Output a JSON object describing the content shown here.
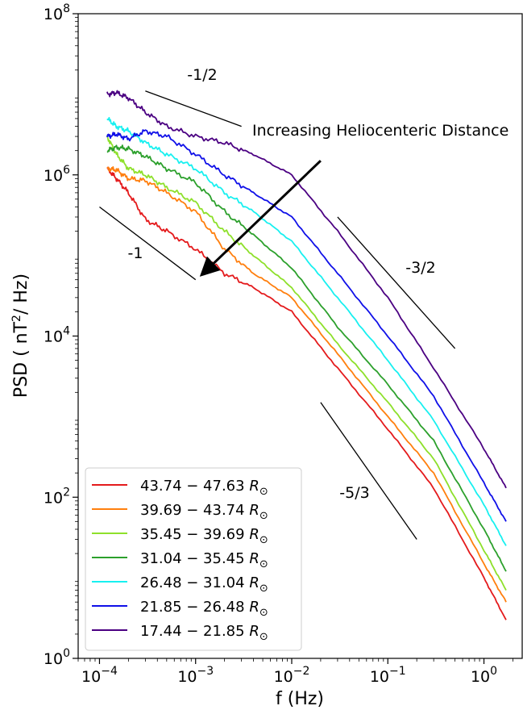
{
  "chart_data": {
    "type": "line",
    "xscale": "log",
    "yscale": "log",
    "xlim": [
      6e-05,
      2.5
    ],
    "ylim": [
      1,
      100000000
    ],
    "xlabel": "f (Hz)",
    "ylabel": "PSD ( nT²/ Hz)",
    "x_ticks": [
      {
        "value": 0.0001,
        "label": "10",
        "exp": "−4"
      },
      {
        "value": 0.001,
        "label": "10",
        "exp": "−3"
      },
      {
        "value": 0.01,
        "label": "10",
        "exp": "−2"
      },
      {
        "value": 0.1,
        "label": "10",
        "exp": "−1"
      },
      {
        "value": 1,
        "label": "10",
        "exp": "0"
      }
    ],
    "y_ticks": [
      {
        "value": 1,
        "label": "10",
        "exp": "0"
      },
      {
        "value": 100,
        "label": "10",
        "exp": "2"
      },
      {
        "value": 10000,
        "label": "10",
        "exp": "4"
      },
      {
        "value": 1000000,
        "label": "10",
        "exp": "6"
      },
      {
        "value": 100000000,
        "label": "10",
        "exp": "8"
      }
    ],
    "legend_placement": "lower-left",
    "series": [
      {
        "name": "43.74 − 47.63 R",
        "subscript": "⊙",
        "color": "#e41a1c",
        "x": [
          0.00012,
          0.00015,
          0.0002,
          0.0003,
          0.0005,
          0.001,
          0.002,
          0.004,
          0.01,
          0.03,
          0.1,
          0.3,
          1.0,
          1.7
        ],
        "y": [
          1200000,
          900000,
          600000,
          280000,
          200000,
          120000,
          60000,
          40000,
          20000,
          4000,
          700,
          130,
          10,
          3.0
        ]
      },
      {
        "name": "39.69 − 43.74 R",
        "subscript": "⊙",
        "color": "#ff7f0e",
        "x": [
          0.00012,
          0.00015,
          0.0002,
          0.0003,
          0.0005,
          0.001,
          0.002,
          0.004,
          0.01,
          0.03,
          0.1,
          0.3,
          1.0,
          1.7
        ],
        "y": [
          1200000,
          1150000,
          900000,
          850000,
          600000,
          350000,
          120000,
          60000,
          30000,
          6000,
          1000,
          200,
          15,
          5.0
        ]
      },
      {
        "name": "35.45 − 39.69 R",
        "subscript": "⊙",
        "color": "#8ee02b",
        "x": [
          0.00012,
          0.00015,
          0.0002,
          0.0003,
          0.0005,
          0.001,
          0.002,
          0.004,
          0.01,
          0.03,
          0.1,
          0.3,
          1.0,
          1.7
        ],
        "y": [
          3000000,
          1800000,
          1200000,
          1000000,
          700000,
          450000,
          200000,
          100000,
          40000,
          8000,
          1500,
          300,
          22,
          7.0
        ]
      },
      {
        "name": "31.04 − 35.45 R",
        "subscript": "⊙",
        "color": "#2ca02c",
        "x": [
          0.00012,
          0.00015,
          0.0002,
          0.0003,
          0.0005,
          0.001,
          0.002,
          0.004,
          0.01,
          0.03,
          0.1,
          0.3,
          1.0,
          1.7
        ],
        "y": [
          2000000,
          2200000,
          2100000,
          1700000,
          1200000,
          800000,
          350000,
          180000,
          70000,
          13000,
          2500,
          500,
          40,
          12.0
        ]
      },
      {
        "name": "26.48 − 31.04 R",
        "subscript": "⊙",
        "color": "#18f0f0",
        "x": [
          0.00012,
          0.00015,
          0.0002,
          0.0003,
          0.0005,
          0.001,
          0.002,
          0.004,
          0.01,
          0.03,
          0.1,
          0.3,
          1.0,
          1.7
        ],
        "y": [
          5000000,
          4000000,
          3500000,
          2500000,
          1800000,
          1200000,
          600000,
          350000,
          150000,
          30000,
          5000,
          900,
          80,
          25
        ]
      },
      {
        "name": "21.85 − 26.48 R",
        "subscript": "⊙",
        "color": "#1010e8",
        "x": [
          0.00012,
          0.00015,
          0.0002,
          0.0003,
          0.0005,
          0.001,
          0.002,
          0.004,
          0.01,
          0.03,
          0.1,
          0.3,
          1.0,
          1.7
        ],
        "y": [
          3000000,
          3200000,
          2800000,
          3500000,
          3000000,
          1800000,
          1000000,
          600000,
          300000,
          60000,
          10000,
          1800,
          150,
          50
        ]
      },
      {
        "name": "17.44 − 21.85 R",
        "subscript": "⊙",
        "color": "#4b0082",
        "x": [
          0.00012,
          0.00015,
          0.0002,
          0.0003,
          0.0005,
          0.001,
          0.002,
          0.004,
          0.01,
          0.03,
          0.1,
          0.3,
          1.0,
          1.7
        ],
        "y": [
          10000000,
          10500000,
          9000000,
          6000000,
          4000000,
          3000000,
          2500000,
          1800000,
          1000000,
          200000,
          30000,
          4000,
          400,
          130
        ]
      }
    ],
    "reference_slopes": [
      {
        "label": "-1/2",
        "x": [
          0.0003,
          0.003
        ],
        "y": [
          11000000,
          4000000
        ]
      },
      {
        "label": "-1",
        "x": [
          0.0001,
          0.001
        ],
        "y": [
          400000,
          50000
        ]
      },
      {
        "label": "-3/2",
        "x": [
          0.03,
          0.5
        ],
        "y": [
          300000,
          7000
        ]
      },
      {
        "label": "-5/3",
        "x": [
          0.02,
          0.2
        ],
        "y": [
          1500,
          30
        ]
      }
    ],
    "annotation": {
      "text": "Increasing Heliocenteric Distance",
      "arrow_from": [
        0.02,
        1500000
      ],
      "arrow_to": [
        0.0012,
        60000
      ]
    }
  }
}
